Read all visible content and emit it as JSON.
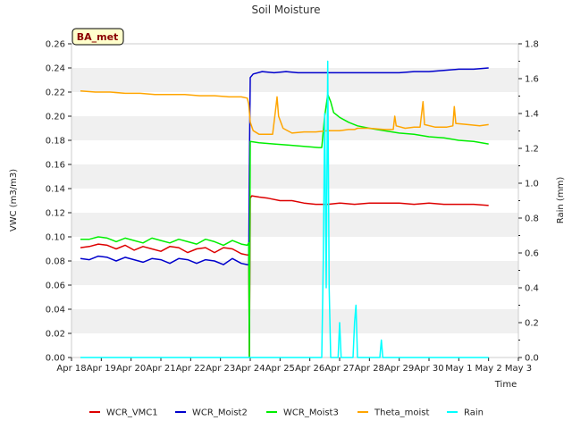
{
  "chart_data": {
    "type": "line",
    "title": "Soil Moisture",
    "xlabel": "Time",
    "ylabel": "VWC (m3/m3)",
    "y2label": "Rain (mm)",
    "station_label": "BA_met",
    "xlim": [
      0,
      15
    ],
    "ylim": [
      0,
      0.26
    ],
    "y2lim": [
      0,
      1.8
    ],
    "grid": "horizontal bands",
    "x_ticks": [
      {
        "v": 0,
        "label": "Apr 18"
      },
      {
        "v": 1,
        "label": "Apr 19"
      },
      {
        "v": 2,
        "label": "Apr 20"
      },
      {
        "v": 3,
        "label": "Apr 21"
      },
      {
        "v": 4,
        "label": "Apr 22"
      },
      {
        "v": 5,
        "label": "Apr 23"
      },
      {
        "v": 6,
        "label": "Apr 24"
      },
      {
        "v": 7,
        "label": "Apr 25"
      },
      {
        "v": 8,
        "label": "Apr 26"
      },
      {
        "v": 9,
        "label": "Apr 27"
      },
      {
        "v": 10,
        "label": "Apr 28"
      },
      {
        "v": 11,
        "label": "Apr 29"
      },
      {
        "v": 12,
        "label": "Apr 30"
      },
      {
        "v": 13,
        "label": "May 1"
      },
      {
        "v": 14,
        "label": "May 2"
      },
      {
        "v": 15,
        "label": "May 3"
      }
    ],
    "y_ticks": [
      {
        "v": 0.0,
        "label": "0.00"
      },
      {
        "v": 0.02,
        "label": "0.02"
      },
      {
        "v": 0.04,
        "label": "0.04"
      },
      {
        "v": 0.06,
        "label": "0.06"
      },
      {
        "v": 0.08,
        "label": "0.08"
      },
      {
        "v": 0.1,
        "label": "0.10"
      },
      {
        "v": 0.12,
        "label": "0.12"
      },
      {
        "v": 0.14,
        "label": "0.14"
      },
      {
        "v": 0.16,
        "label": "0.16"
      },
      {
        "v": 0.18,
        "label": "0.18"
      },
      {
        "v": 0.2,
        "label": "0.20"
      },
      {
        "v": 0.22,
        "label": "0.22"
      },
      {
        "v": 0.24,
        "label": "0.24"
      },
      {
        "v": 0.26,
        "label": "0.26"
      }
    ],
    "y2_ticks": [
      {
        "v": 0.0,
        "label": "0.0"
      },
      {
        "v": 0.2,
        "label": "0.2"
      },
      {
        "v": 0.4,
        "label": "0.4"
      },
      {
        "v": 0.6,
        "label": "0.6"
      },
      {
        "v": 0.8,
        "label": "0.8"
      },
      {
        "v": 1.0,
        "label": "1.0"
      },
      {
        "v": 1.2,
        "label": "1.2"
      },
      {
        "v": 1.4,
        "label": "1.4"
      },
      {
        "v": 1.6,
        "label": "1.6"
      },
      {
        "v": 1.8,
        "label": "1.8"
      }
    ],
    "series": [
      {
        "name": "WCR_VMC1",
        "color": "#dd0000",
        "axis": "left",
        "points": [
          [
            0.3,
            0.091
          ],
          [
            0.6,
            0.092
          ],
          [
            0.9,
            0.094
          ],
          [
            1.2,
            0.093
          ],
          [
            1.5,
            0.09
          ],
          [
            1.8,
            0.093
          ],
          [
            2.1,
            0.089
          ],
          [
            2.4,
            0.092
          ],
          [
            2.7,
            0.09
          ],
          [
            3.0,
            0.088
          ],
          [
            3.3,
            0.092
          ],
          [
            3.6,
            0.091
          ],
          [
            3.9,
            0.087
          ],
          [
            4.2,
            0.09
          ],
          [
            4.5,
            0.091
          ],
          [
            4.8,
            0.087
          ],
          [
            5.1,
            0.091
          ],
          [
            5.4,
            0.09
          ],
          [
            5.7,
            0.086
          ],
          [
            5.9,
            0.085
          ],
          [
            5.95,
            0.085
          ],
          [
            5.97,
            0.0
          ],
          [
            6.0,
            0.132
          ],
          [
            6.05,
            0.134
          ],
          [
            6.3,
            0.133
          ],
          [
            6.6,
            0.132
          ],
          [
            7.0,
            0.13
          ],
          [
            7.4,
            0.13
          ],
          [
            7.8,
            0.128
          ],
          [
            8.2,
            0.127
          ],
          [
            8.6,
            0.127
          ],
          [
            9.0,
            0.128
          ],
          [
            9.5,
            0.127
          ],
          [
            10.0,
            0.128
          ],
          [
            10.5,
            0.128
          ],
          [
            11.0,
            0.128
          ],
          [
            11.5,
            0.127
          ],
          [
            12.0,
            0.128
          ],
          [
            12.5,
            0.127
          ],
          [
            13.0,
            0.127
          ],
          [
            13.5,
            0.127
          ],
          [
            14.0,
            0.126
          ]
        ]
      },
      {
        "name": "WCR_Moist2",
        "color": "#0000cc",
        "axis": "left",
        "points": [
          [
            0.3,
            0.082
          ],
          [
            0.6,
            0.081
          ],
          [
            0.9,
            0.084
          ],
          [
            1.2,
            0.083
          ],
          [
            1.5,
            0.08
          ],
          [
            1.8,
            0.083
          ],
          [
            2.1,
            0.081
          ],
          [
            2.4,
            0.079
          ],
          [
            2.7,
            0.082
          ],
          [
            3.0,
            0.081
          ],
          [
            3.3,
            0.078
          ],
          [
            3.6,
            0.082
          ],
          [
            3.9,
            0.081
          ],
          [
            4.2,
            0.078
          ],
          [
            4.5,
            0.081
          ],
          [
            4.8,
            0.08
          ],
          [
            5.1,
            0.077
          ],
          [
            5.4,
            0.082
          ],
          [
            5.7,
            0.078
          ],
          [
            5.9,
            0.077
          ],
          [
            5.95,
            0.077
          ],
          [
            5.98,
            0.18
          ],
          [
            6.0,
            0.232
          ],
          [
            6.1,
            0.235
          ],
          [
            6.4,
            0.237
          ],
          [
            6.8,
            0.236
          ],
          [
            7.2,
            0.237
          ],
          [
            7.6,
            0.236
          ],
          [
            8.0,
            0.236
          ],
          [
            8.5,
            0.236
          ],
          [
            9.0,
            0.236
          ],
          [
            9.5,
            0.236
          ],
          [
            10.0,
            0.236
          ],
          [
            10.5,
            0.236
          ],
          [
            11.0,
            0.236
          ],
          [
            11.5,
            0.237
          ],
          [
            12.0,
            0.237
          ],
          [
            12.5,
            0.238
          ],
          [
            13.0,
            0.239
          ],
          [
            13.5,
            0.239
          ],
          [
            14.0,
            0.24
          ]
        ]
      },
      {
        "name": "WCR_Moist3",
        "color": "#00ee00",
        "axis": "left",
        "points": [
          [
            0.3,
            0.098
          ],
          [
            0.6,
            0.098
          ],
          [
            0.9,
            0.1
          ],
          [
            1.2,
            0.099
          ],
          [
            1.5,
            0.096
          ],
          [
            1.8,
            0.099
          ],
          [
            2.1,
            0.097
          ],
          [
            2.4,
            0.095
          ],
          [
            2.7,
            0.099
          ],
          [
            3.0,
            0.097
          ],
          [
            3.3,
            0.095
          ],
          [
            3.6,
            0.098
          ],
          [
            3.9,
            0.096
          ],
          [
            4.2,
            0.094
          ],
          [
            4.5,
            0.098
          ],
          [
            4.8,
            0.096
          ],
          [
            5.1,
            0.093
          ],
          [
            5.4,
            0.097
          ],
          [
            5.7,
            0.094
          ],
          [
            5.9,
            0.093
          ],
          [
            5.95,
            0.095
          ],
          [
            5.97,
            0.0
          ],
          [
            6.0,
            0.179
          ],
          [
            6.3,
            0.178
          ],
          [
            6.8,
            0.177
          ],
          [
            7.3,
            0.176
          ],
          [
            7.8,
            0.175
          ],
          [
            8.3,
            0.174
          ],
          [
            8.4,
            0.174
          ],
          [
            8.5,
            0.2
          ],
          [
            8.6,
            0.218
          ],
          [
            8.7,
            0.212
          ],
          [
            8.8,
            0.203
          ],
          [
            9.0,
            0.199
          ],
          [
            9.3,
            0.195
          ],
          [
            9.6,
            0.192
          ],
          [
            10.0,
            0.19
          ],
          [
            10.5,
            0.188
          ],
          [
            11.0,
            0.186
          ],
          [
            11.5,
            0.185
          ],
          [
            12.0,
            0.183
          ],
          [
            12.5,
            0.182
          ],
          [
            13.0,
            0.18
          ],
          [
            13.5,
            0.179
          ],
          [
            14.0,
            0.177
          ]
        ]
      },
      {
        "name": "Theta_moist",
        "color": "#ffa500",
        "axis": "left",
        "points": [
          [
            0.3,
            0.221
          ],
          [
            0.8,
            0.22
          ],
          [
            1.3,
            0.22
          ],
          [
            1.8,
            0.219
          ],
          [
            2.3,
            0.219
          ],
          [
            2.8,
            0.218
          ],
          [
            3.3,
            0.218
          ],
          [
            3.8,
            0.218
          ],
          [
            4.3,
            0.217
          ],
          [
            4.8,
            0.217
          ],
          [
            5.3,
            0.216
          ],
          [
            5.7,
            0.216
          ],
          [
            5.9,
            0.215
          ],
          [
            5.95,
            0.21
          ],
          [
            6.0,
            0.195
          ],
          [
            6.1,
            0.188
          ],
          [
            6.3,
            0.185
          ],
          [
            6.6,
            0.185
          ],
          [
            6.75,
            0.185
          ],
          [
            6.85,
            0.205
          ],
          [
            6.9,
            0.216
          ],
          [
            6.95,
            0.2
          ],
          [
            7.1,
            0.19
          ],
          [
            7.4,
            0.186
          ],
          [
            7.8,
            0.187
          ],
          [
            8.2,
            0.187
          ],
          [
            8.6,
            0.188
          ],
          [
            9.0,
            0.188
          ],
          [
            9.3,
            0.189
          ],
          [
            9.5,
            0.189
          ],
          [
            9.6,
            0.19
          ],
          [
            10.0,
            0.19
          ],
          [
            10.5,
            0.189
          ],
          [
            10.8,
            0.189
          ],
          [
            10.85,
            0.2
          ],
          [
            10.9,
            0.192
          ],
          [
            11.2,
            0.19
          ],
          [
            11.5,
            0.191
          ],
          [
            11.7,
            0.191
          ],
          [
            11.8,
            0.212
          ],
          [
            11.85,
            0.193
          ],
          [
            12.2,
            0.191
          ],
          [
            12.6,
            0.191
          ],
          [
            12.8,
            0.192
          ],
          [
            12.85,
            0.208
          ],
          [
            12.9,
            0.194
          ],
          [
            13.3,
            0.193
          ],
          [
            13.7,
            0.192
          ],
          [
            14.0,
            0.193
          ]
        ]
      },
      {
        "name": "Rain",
        "color": "#00ffff",
        "axis": "right",
        "points": [
          [
            0.3,
            0.0
          ],
          [
            8.4,
            0.0
          ],
          [
            8.45,
            0.55
          ],
          [
            8.5,
            1.4
          ],
          [
            8.55,
            0.4
          ],
          [
            8.6,
            1.7
          ],
          [
            8.65,
            0.4
          ],
          [
            8.7,
            0.0
          ],
          [
            8.95,
            0.0
          ],
          [
            9.0,
            0.2
          ],
          [
            9.05,
            0.0
          ],
          [
            9.45,
            0.0
          ],
          [
            9.5,
            0.2
          ],
          [
            9.55,
            0.3
          ],
          [
            9.6,
            0.0
          ],
          [
            10.35,
            0.0
          ],
          [
            10.4,
            0.1
          ],
          [
            10.45,
            0.0
          ],
          [
            14.0,
            0.0
          ]
        ]
      }
    ]
  }
}
